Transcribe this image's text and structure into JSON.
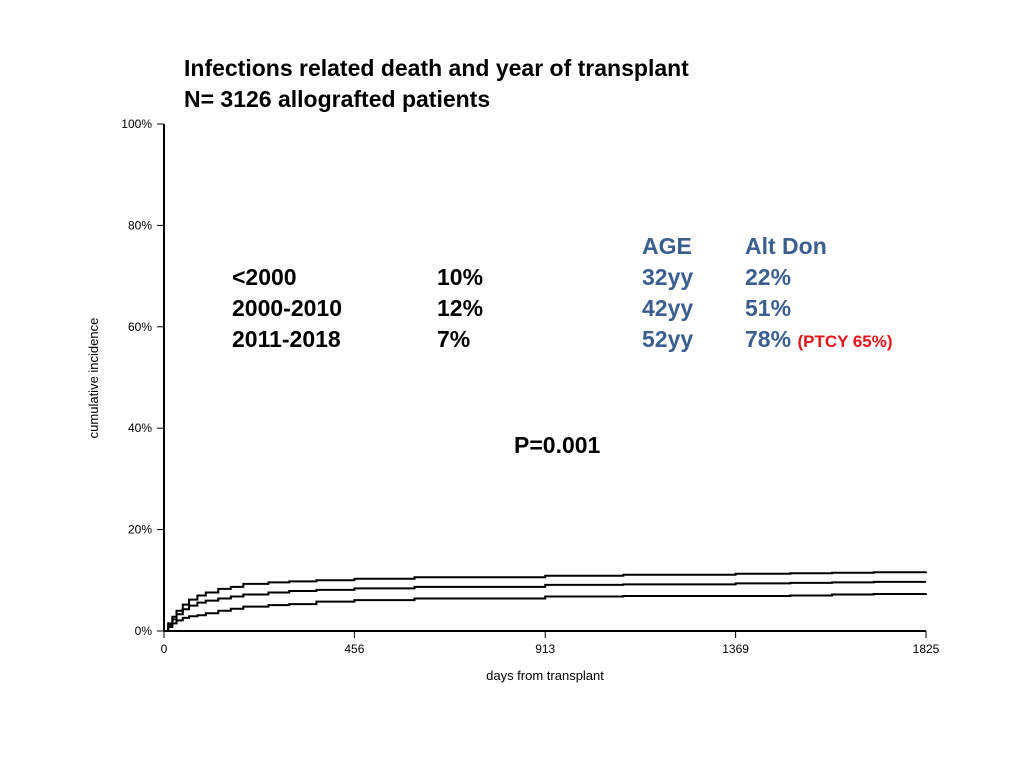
{
  "title_line1": "Infections related death and year of transplant",
  "title_line2": "N= 3126 allografted patients",
  "colors": {
    "annotation_blue": "#3a5f8f",
    "annotation_red": "#e3151b",
    "curve": "#000000"
  },
  "period_table": [
    {
      "period": "<2000",
      "value": "10%"
    },
    {
      "period": "2000-2010",
      "value": "12%"
    },
    {
      "period": "2011-2018",
      "value": "7%"
    }
  ],
  "age_table": {
    "header_age": "AGE",
    "header_altdon": "Alt Don",
    "rows": [
      {
        "age": "32yy",
        "altdon": "22%",
        "note": ""
      },
      {
        "age": "42yy",
        "altdon": "51%",
        "note": ""
      },
      {
        "age": "52yy",
        "altdon": "78%",
        "note": "(PTCY 65%)"
      }
    ]
  },
  "p_value": "P=0.001",
  "chart_data": {
    "type": "line",
    "xlabel": "days from transplant",
    "ylabel": "cumulative incidence",
    "xlim": [
      0,
      1825
    ],
    "ylim": [
      0,
      100
    ],
    "x_ticks": [
      0,
      456,
      913,
      1369,
      1825
    ],
    "x_tick_labels": [
      "0",
      "456",
      "913",
      "1369",
      "1825"
    ],
    "y_ticks": [
      0,
      20,
      40,
      60,
      80,
      100
    ],
    "y_tick_labels": [
      "0%",
      "20%",
      "40%",
      "60%",
      "80%",
      "100%"
    ],
    "grid": false,
    "series": [
      {
        "x": [
          0,
          10,
          20,
          30,
          45,
          60,
          80,
          100,
          130,
          160,
          190,
          250,
          300,
          365,
          456,
          600,
          913,
          1100,
          1369,
          1500,
          1600,
          1700,
          1825
        ],
        "y": [
          0,
          1.5,
          2.8,
          4.0,
          5.2,
          6.2,
          7.0,
          7.6,
          8.3,
          8.7,
          9.3,
          9.6,
          9.8,
          10.0,
          10.3,
          10.6,
          10.9,
          11.1,
          11.3,
          11.4,
          11.5,
          11.6,
          11.7
        ]
      },
      {
        "x": [
          0,
          10,
          20,
          30,
          45,
          60,
          80,
          100,
          130,
          160,
          190,
          250,
          300,
          365,
          456,
          600,
          913,
          1100,
          1369,
          1500,
          1600,
          1700,
          1825
        ],
        "y": [
          0,
          1.2,
          2.3,
          3.3,
          4.3,
          5.0,
          5.6,
          6.0,
          6.4,
          6.8,
          7.2,
          7.6,
          7.9,
          8.1,
          8.4,
          8.7,
          9.1,
          9.2,
          9.4,
          9.5,
          9.6,
          9.7,
          9.7
        ]
      },
      {
        "x": [
          0,
          10,
          20,
          30,
          45,
          60,
          80,
          100,
          130,
          160,
          190,
          250,
          300,
          365,
          456,
          600,
          913,
          1100,
          1369,
          1500,
          1600,
          1700,
          1825
        ],
        "y": [
          0,
          0.8,
          1.5,
          2.1,
          2.6,
          2.9,
          3.1,
          3.5,
          4.0,
          4.4,
          4.8,
          5.1,
          5.3,
          5.8,
          6.1,
          6.4,
          6.8,
          6.9,
          6.9,
          7.0,
          7.2,
          7.3,
          7.4
        ]
      }
    ]
  }
}
